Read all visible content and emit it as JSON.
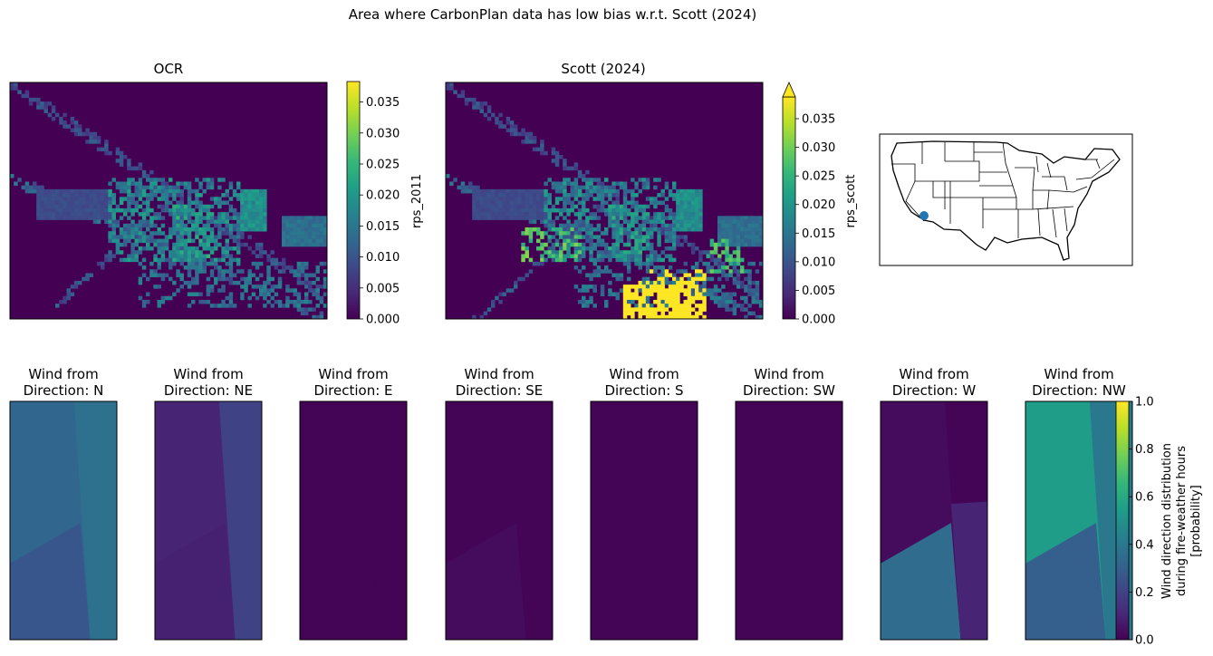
{
  "figure": {
    "title": "Area where CarbonPlan data has low bias w.r.t. Scott (2024)"
  },
  "colors": {
    "viridis": [
      "#440154",
      "#482878",
      "#3e4989",
      "#31688e",
      "#26828e",
      "#1f9e89",
      "#35b779",
      "#6ece58",
      "#b5de2b",
      "#fde725"
    ],
    "marker": "#1f77b4"
  },
  "chart_data": [
    {
      "type": "heatmap",
      "id": "ocr",
      "title": "OCR",
      "colorbar": {
        "label": "rps_2011",
        "range": [
          0,
          0.0383
        ],
        "ticks": [
          "0.000",
          "0.005",
          "0.010",
          "0.015",
          "0.020",
          "0.025",
          "0.030",
          "0.035"
        ],
        "extend": "none"
      },
      "description_regions": "raster of wildfire risk; mostly near-zero with scattered values up to ~0.03"
    },
    {
      "type": "heatmap",
      "id": "scott",
      "title": "Scott (2024)",
      "colorbar": {
        "label": "rps_scott",
        "range": [
          0,
          0.0388
        ],
        "ticks": [
          "0.000",
          "0.005",
          "0.010",
          "0.015",
          "0.020",
          "0.025",
          "0.030",
          "0.035"
        ],
        "extend": "max"
      },
      "description_regions": "raster similar to OCR but with saturated high values (>0.035) in lower middle area"
    },
    {
      "type": "map",
      "id": "locator",
      "region": "contiguous United States",
      "marker_location": "southern California"
    },
    {
      "type": "heatmap",
      "id": "wind",
      "panels": [
        {
          "title": "Wind from\nDirection: N",
          "values": {
            "upper_left": 0.33,
            "right_strip": 0.37,
            "lower_left": 0.27
          }
        },
        {
          "title": "Wind from\nDirection: NE",
          "values": {
            "upper_left": 0.1,
            "right_strip": 0.2,
            "lower_left": 0.09
          }
        },
        {
          "title": "Wind from\nDirection: E",
          "values": {
            "upper_left": 0.01,
            "right_strip": 0.01,
            "lower_left": 0.01
          }
        },
        {
          "title": "Wind from\nDirection: SE",
          "values": {
            "upper_left": 0.01,
            "right_strip": 0.01,
            "lower_left": 0.03
          }
        },
        {
          "title": "Wind from\nDirection: S",
          "values": {
            "upper_left": 0.01,
            "right_strip": 0.01,
            "lower_left": 0.01
          }
        },
        {
          "title": "Wind from\nDirection: SW",
          "values": {
            "upper_left": 0.01,
            "right_strip": 0.01,
            "lower_left": 0.01
          }
        },
        {
          "title": "Wind from\nDirection: W",
          "values": {
            "upper_left": 0.03,
            "right_strip": 0.01,
            "lower_left": 0.35,
            "lower_right": 0.1
          }
        },
        {
          "title": "Wind from\nDirection: NW",
          "values": {
            "upper_left": 0.55,
            "right_strip": 0.4,
            "lower_left": 0.3
          }
        }
      ],
      "colorbar": {
        "label_lines": [
          "Wind direction distribution",
          "during fire-weather hours",
          "[probability]"
        ],
        "range": [
          0,
          1
        ],
        "ticks": [
          "0.0",
          "0.2",
          "0.4",
          "0.6",
          "0.8",
          "1.0"
        ]
      }
    }
  ]
}
